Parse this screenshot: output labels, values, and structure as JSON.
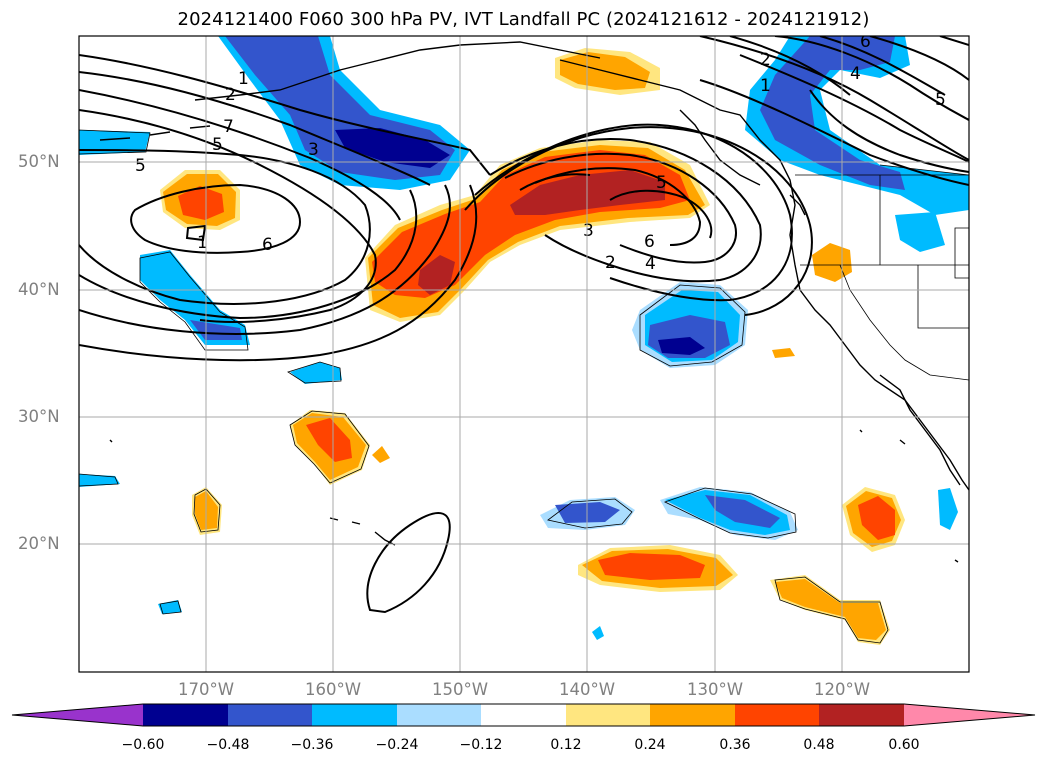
{
  "title": "2024121400 F060 300 hPa PV, IVT Landfall PC (2024121612 - 2024121912)",
  "lat_labels": [
    "50°N",
    "40°N",
    "30°N",
    "20°N"
  ],
  "lon_labels": [
    "170°W",
    "160°W",
    "150°W",
    "140°W",
    "130°W",
    "120°W"
  ],
  "colorbar": {
    "ticks": [
      "−0.60",
      "−0.48",
      "−0.36",
      "−0.24",
      "−0.12",
      "0.12",
      "0.24",
      "0.36",
      "0.48",
      "0.60"
    ],
    "colors": [
      "#9933cc",
      "#000090",
      "#3355cc",
      "#00bbff",
      "#aaddff",
      "#ffffff",
      "#ffe680",
      "#ffa500",
      "#ff4400",
      "#b22222",
      "#ff88aa"
    ]
  },
  "contour_labels": [
    "1",
    "2",
    "7",
    "5",
    "3",
    "5",
    "6",
    "1",
    "3",
    "5",
    "6",
    "2",
    "4",
    "2",
    "1",
    "4",
    "6",
    "5"
  ],
  "colors": {
    "pos_light": "#ffe680",
    "pos_orange": "#ffa500",
    "pos_red_orange": "#ff4400",
    "pos_dark_red": "#b22222",
    "neg_light": "#aaddff",
    "neg_cyan": "#00bbff",
    "neg_blue": "#3355cc",
    "neg_navy": "#000090"
  }
}
